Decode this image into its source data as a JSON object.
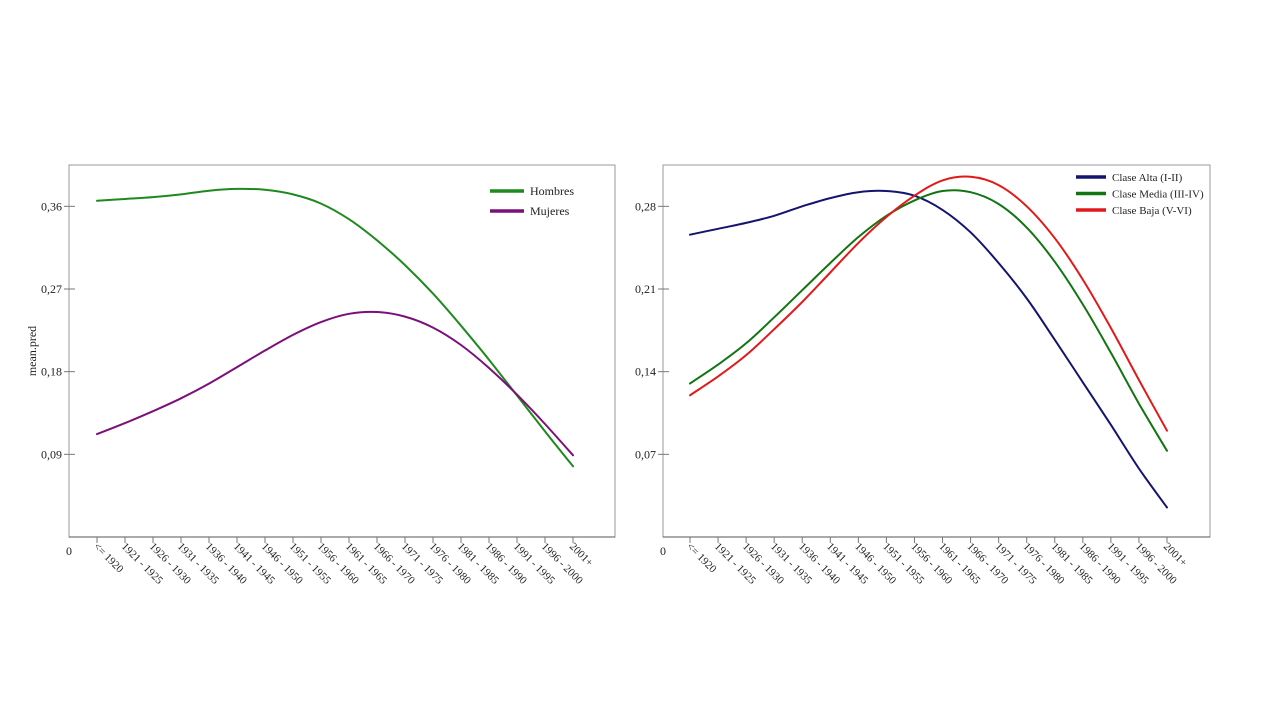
{
  "chart_data": [
    {
      "type": "line",
      "ylabel": "mean.pred",
      "x_origin_label": "0",
      "categories": [
        "<= 1920",
        "1921 - 1925",
        "1926 - 1930",
        "1931 - 1935",
        "1936 - 1940",
        "1941 - 1945",
        "1946 - 1950",
        "1951 - 1955",
        "1956 - 1960",
        "1961 - 1965",
        "1966 - 1970",
        "1971 - 1975",
        "1976 - 1980",
        "1981 - 1985",
        "1986 - 1990",
        "1991 - 1995",
        "1996 - 2000",
        "2001+"
      ],
      "yticks": [
        "0,09",
        "0,18",
        "0,27",
        "0,36"
      ],
      "ytick_values": [
        0.09,
        0.18,
        0.27,
        0.36
      ],
      "ylim": [
        0,
        0.405
      ],
      "grid": false,
      "legend_position": "top-right",
      "series": [
        {
          "name": "Hombres",
          "color": "#1e8a1e",
          "values": [
            0.366,
            0.368,
            0.37,
            0.373,
            0.377,
            0.379,
            0.378,
            0.373,
            0.363,
            0.346,
            0.323,
            0.296,
            0.265,
            0.23,
            0.193,
            0.154,
            0.115,
            0.077
          ]
        },
        {
          "name": "Mujeres",
          "color": "#7b107b",
          "values": [
            0.112,
            0.124,
            0.137,
            0.151,
            0.167,
            0.185,
            0.203,
            0.22,
            0.234,
            0.243,
            0.245,
            0.24,
            0.228,
            0.209,
            0.184,
            0.155,
            0.123,
            0.089
          ]
        }
      ]
    },
    {
      "type": "line",
      "x_origin_label": "0",
      "categories": [
        "<= 1920",
        "1921 - 1925",
        "1926 - 1930",
        "1931 - 1935",
        "1936 - 1940",
        "1941 - 1945",
        "1946 - 1950",
        "1951 - 1955",
        "1956 - 1960",
        "1961 - 1965",
        "1966 - 1970",
        "1971 - 1975",
        "1976 - 1980",
        "1981 - 1985",
        "1986 - 1990",
        "1991 - 1995",
        "1996 - 2000",
        "2001+"
      ],
      "yticks": [
        "0,07",
        "0,14",
        "0,21",
        "0,28"
      ],
      "ytick_values": [
        0.07,
        0.14,
        0.21,
        0.28
      ],
      "ylim": [
        0,
        0.315
      ],
      "grid": false,
      "legend_position": "top-right",
      "series": [
        {
          "name": "Clase Alta (I-II)",
          "color": "#141470",
          "values": [
            0.256,
            0.261,
            0.266,
            0.272,
            0.28,
            0.287,
            0.292,
            0.293,
            0.289,
            0.277,
            0.258,
            0.232,
            0.202,
            0.167,
            0.131,
            0.095,
            0.058,
            0.025
          ]
        },
        {
          "name": "Clase Media (III-IV)",
          "color": "#117511",
          "values": [
            0.13,
            0.146,
            0.164,
            0.186,
            0.209,
            0.232,
            0.254,
            0.272,
            0.285,
            0.293,
            0.292,
            0.282,
            0.262,
            0.233,
            0.197,
            0.156,
            0.113,
            0.073
          ]
        },
        {
          "name": "Clase Baja (V-VI)",
          "color": "#e11919",
          "values": [
            0.12,
            0.136,
            0.154,
            0.176,
            0.199,
            0.224,
            0.249,
            0.271,
            0.289,
            0.302,
            0.305,
            0.298,
            0.28,
            0.253,
            0.218,
            0.177,
            0.133,
            0.09
          ]
        }
      ]
    }
  ]
}
